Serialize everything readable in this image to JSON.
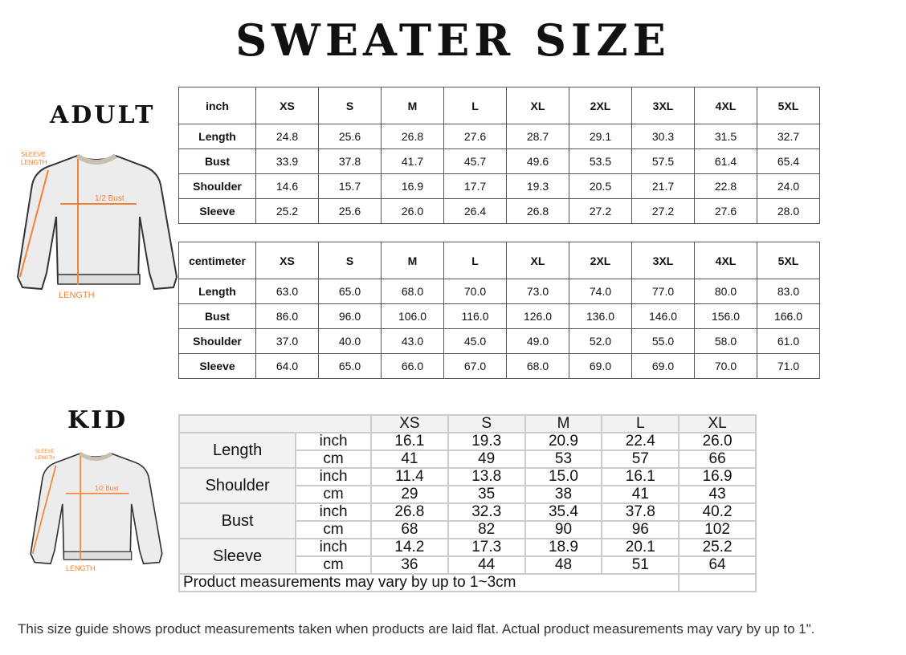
{
  "title": "SWEATER SIZE",
  "adult": {
    "label": "ADULT",
    "diagram": {
      "sleeve": "SLEEVE LENGTH",
      "bust": "1/2 Bust",
      "length": "LENGTH"
    },
    "inch": {
      "unit": "inch",
      "sizes": [
        "XS",
        "S",
        "M",
        "L",
        "XL",
        "2XL",
        "3XL",
        "4XL",
        "5XL"
      ],
      "rows": [
        {
          "name": "Length",
          "values": [
            "24.8",
            "25.6",
            "26.8",
            "27.6",
            "28.7",
            "29.1",
            "30.3",
            "31.5",
            "32.7"
          ]
        },
        {
          "name": "Bust",
          "values": [
            "33.9",
            "37.8",
            "41.7",
            "45.7",
            "49.6",
            "53.5",
            "57.5",
            "61.4",
            "65.4"
          ]
        },
        {
          "name": "Shoulder",
          "values": [
            "14.6",
            "15.7",
            "16.9",
            "17.7",
            "19.3",
            "20.5",
            "21.7",
            "22.8",
            "24.0"
          ]
        },
        {
          "name": "Sleeve",
          "values": [
            "25.2",
            "25.6",
            "26.0",
            "26.4",
            "26.8",
            "27.2",
            "27.2",
            "27.6",
            "28.0"
          ]
        }
      ]
    },
    "cm": {
      "unit": "centimeter",
      "sizes": [
        "XS",
        "S",
        "M",
        "L",
        "XL",
        "2XL",
        "3XL",
        "4XL",
        "5XL"
      ],
      "rows": [
        {
          "name": "Length",
          "values": [
            "63.0",
            "65.0",
            "68.0",
            "70.0",
            "73.0",
            "74.0",
            "77.0",
            "80.0",
            "83.0"
          ]
        },
        {
          "name": "Bust",
          "values": [
            "86.0",
            "96.0",
            "106.0",
            "116.0",
            "126.0",
            "136.0",
            "146.0",
            "156.0",
            "166.0"
          ]
        },
        {
          "name": "Shoulder",
          "values": [
            "37.0",
            "40.0",
            "43.0",
            "45.0",
            "49.0",
            "52.0",
            "55.0",
            "58.0",
            "61.0"
          ]
        },
        {
          "name": "Sleeve",
          "values": [
            "64.0",
            "65.0",
            "66.0",
            "67.0",
            "68.0",
            "69.0",
            "69.0",
            "70.0",
            "71.0"
          ]
        }
      ]
    }
  },
  "kid": {
    "label": "KID",
    "diagram": {
      "sleeve": "SLEEVE LENGTH",
      "bust": "1/2 Bust",
      "length": "LENGTH"
    },
    "sizes": [
      "XS",
      "S",
      "M",
      "L",
      "XL"
    ],
    "rows": [
      {
        "name": "Length",
        "inch_unit": "inch",
        "cm_unit": "cm",
        "inch": [
          "16.1",
          "19.3",
          "20.9",
          "22.4",
          "26.0"
        ],
        "cm": [
          "41",
          "49",
          "53",
          "57",
          "66"
        ]
      },
      {
        "name": "Shoulder",
        "inch_unit": "inch",
        "cm_unit": "cm",
        "inch": [
          "11.4",
          "13.8",
          "15.0",
          "16.1",
          "16.9"
        ],
        "cm": [
          "29",
          "35",
          "38",
          "41",
          "43"
        ]
      },
      {
        "name": "Bust",
        "inch_unit": "inch",
        "cm_unit": "cm",
        "inch": [
          "26.8",
          "32.3",
          "35.4",
          "37.8",
          "40.2"
        ],
        "cm": [
          "68",
          "82",
          "90",
          "96",
          "102"
        ]
      },
      {
        "name": "Sleeve",
        "inch_unit": "inch",
        "cm_unit": "cm",
        "inch": [
          "14.2",
          "17.3",
          "18.9",
          "20.1",
          "25.2"
        ],
        "cm": [
          "36",
          "44",
          "48",
          "51",
          "64"
        ]
      }
    ],
    "note": "Product measurements may vary by up to 1~3cm"
  },
  "footer": "This size guide shows product measurements taken when products are laid flat. Actual product measurements may vary by up to 1\"."
}
